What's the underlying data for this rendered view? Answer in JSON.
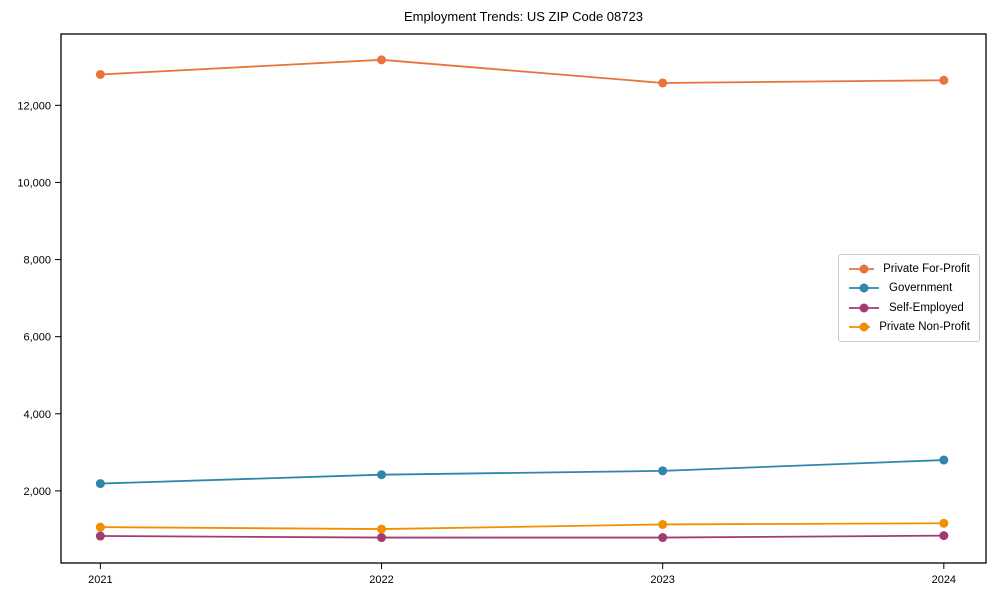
{
  "figure": {
    "background": "#ffffff",
    "axis_color": "#000000",
    "tick_color": "#000000",
    "legend_border_color": "#cccccc"
  },
  "chart_data": {
    "type": "line",
    "title": "Employment Trends: US ZIP Code 08723",
    "xlabel": "",
    "ylabel": "",
    "grid": false,
    "legend_position": "center right",
    "x": [
      2021,
      2022,
      2023,
      2024
    ],
    "xticks": [
      "2021",
      "2022",
      "2023",
      "2024"
    ],
    "yticks": [
      2000,
      4000,
      6000,
      8000,
      10000,
      12000
    ],
    "ytick_labels": [
      "2,000",
      "4,000",
      "6,000",
      "8,000",
      "10,000",
      "12,000"
    ],
    "xlim": [
      2020.86,
      2024.15
    ],
    "ylim": [
      130,
      13850
    ],
    "series": [
      {
        "name": "Private For-Profit",
        "color": "#E8743B",
        "values": [
          12800,
          13180,
          12580,
          12650
        ]
      },
      {
        "name": "Government",
        "color": "#2E86AB",
        "values": [
          2190,
          2420,
          2520,
          2800
        ]
      },
      {
        "name": "Self-Employed",
        "color": "#A23B72",
        "values": [
          830,
          790,
          790,
          840
        ]
      },
      {
        "name": "Private Non-Profit",
        "color": "#F18F01",
        "values": [
          1060,
          1010,
          1130,
          1160
        ]
      }
    ]
  }
}
